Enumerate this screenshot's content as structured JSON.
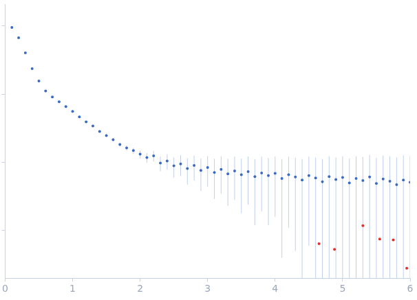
{
  "chart_data": {
    "type": "scatter",
    "log": "y",
    "grid": false,
    "tick_labels": "x",
    "xlim": [
      0,
      6
    ],
    "xticks": [
      0,
      1,
      2,
      3,
      4,
      5,
      6
    ],
    "ylim": [
      0.0002,
      2.1
    ],
    "yticks": [
      0.001,
      0.01,
      0.1,
      1
    ],
    "series": [
      {
        "color": "#3a6bc4",
        "marker": "circle",
        "x": [
          0.1,
          0.2,
          0.3,
          0.4,
          0.5,
          0.6,
          0.7,
          0.8,
          0.9,
          1.0,
          1.1,
          1.2,
          1.3,
          1.4,
          1.5,
          1.6,
          1.7,
          1.8,
          1.9,
          2.0,
          2.1,
          2.2,
          2.3,
          2.4,
          2.5,
          2.6,
          2.7,
          2.8,
          2.9,
          3.0,
          3.1,
          3.2,
          3.3,
          3.4,
          3.5,
          3.6,
          3.7,
          3.8,
          3.9,
          4.0,
          4.1,
          4.2,
          4.3,
          4.4,
          4.5,
          4.6,
          4.7,
          4.8,
          4.9,
          5.0,
          5.1,
          5.2,
          5.3,
          5.4,
          5.5,
          5.6,
          5.7,
          5.8,
          5.9,
          6.0
        ],
        "values": [
          0.955,
          0.673,
          0.404,
          0.237,
          0.156,
          0.112,
          0.0912,
          0.0774,
          0.0658,
          0.0559,
          0.0464,
          0.0394,
          0.0343,
          0.0285,
          0.0248,
          0.0215,
          0.0183,
          0.0163,
          0.0149,
          0.0132,
          0.0118,
          0.0125,
          0.0098,
          0.0105,
          0.0089,
          0.0095,
          0.0081,
          0.009,
          0.0076,
          0.0084,
          0.0071,
          0.0079,
          0.0068,
          0.0075,
          0.0066,
          0.0073,
          0.0062,
          0.007,
          0.0064,
          0.0069,
          0.0058,
          0.0066,
          0.0061,
          0.0055,
          0.0064,
          0.0059,
          0.0052,
          0.0062,
          0.0056,
          0.006,
          0.005,
          0.0058,
          0.0054,
          0.0061,
          0.0049,
          0.0057,
          0.0053,
          0.0047,
          0.0055,
          0.0051
        ],
        "errors": [
          0.01,
          0.005,
          0.003,
          0.002,
          0.0015,
          0.0012,
          0.001,
          0.001,
          0.0009,
          0.0009,
          0.0009,
          0.0009,
          0.001,
          0.001,
          0.0011,
          0.0012,
          0.0013,
          0.0014,
          0.0015,
          0.0017,
          0.0019,
          0.0022,
          0.0024,
          0.0027,
          0.0029,
          0.0032,
          0.0034,
          0.0036,
          0.0038,
          0.004,
          0.0042,
          0.0044,
          0.0045,
          0.0047,
          0.0048,
          0.0049,
          0.005,
          0.0051,
          0.0052,
          0.0053,
          0.0054,
          0.0055,
          0.0056,
          0.0057,
          0.0058,
          0.0059,
          0.006,
          0.0061,
          0.0062,
          0.0063,
          0.0064,
          0.0065,
          0.0066,
          0.0067,
          0.0068,
          0.0069,
          0.007,
          0.0071,
          0.0072,
          0.0073
        ]
      },
      {
        "color": "#e0302a",
        "marker": "circle",
        "x": [
          4.65,
          4.88,
          5.3,
          5.55,
          5.75,
          5.95
        ],
        "values": [
          0.00064,
          0.00053,
          0.00118,
          0.00075,
          0.00073,
          0.00028
        ]
      }
    ]
  }
}
